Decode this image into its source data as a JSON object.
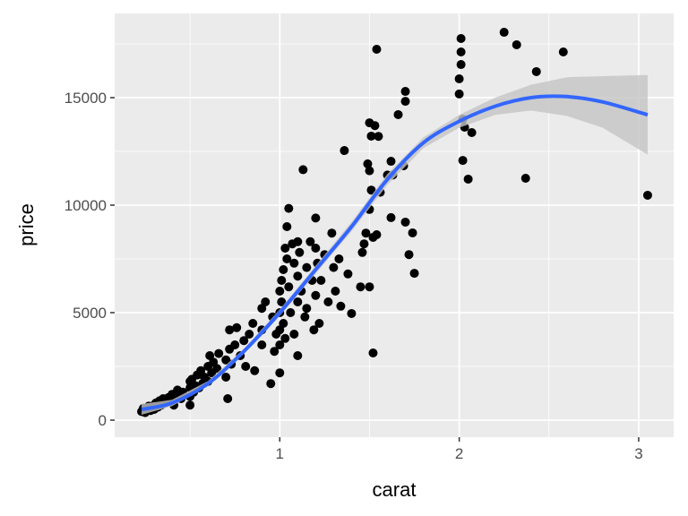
{
  "chart_data": {
    "type": "scatter",
    "x_label": "carat",
    "y_label": "price",
    "xlim": [
      0.08,
      3.195
    ],
    "ylim": [
      -792,
      18917
    ],
    "xticks": [
      1,
      2,
      3
    ],
    "yticks": [
      0,
      5000,
      10000,
      15000
    ],
    "xminor": [
      0.5,
      1.5,
      2.5
    ],
    "yminor": [
      2500,
      7500,
      12500,
      17500
    ],
    "grid": true,
    "panel_color": "#ebebeb",
    "points": {
      "color": "#000000",
      "x": [
        0.23,
        0.24,
        0.25,
        0.26,
        0.27,
        0.28,
        0.3,
        0.3,
        0.31,
        0.32,
        0.33,
        0.34,
        0.35,
        0.36,
        0.38,
        0.4,
        0.4,
        0.41,
        0.42,
        0.43,
        0.45,
        0.46,
        0.5,
        0.5,
        0.5,
        0.5,
        0.51,
        0.52,
        0.53,
        0.54,
        0.55,
        0.56,
        0.57,
        0.58,
        0.6,
        0.6,
        0.61,
        0.62,
        0.63,
        0.65,
        0.66,
        0.7,
        0.7,
        0.71,
        0.72,
        0.72,
        0.73,
        0.75,
        0.76,
        0.78,
        0.8,
        0.81,
        0.83,
        0.85,
        0.86,
        0.9,
        0.9,
        0.9,
        0.92,
        0.95,
        0.96,
        0.97,
        0.98,
        1.0,
        1.0,
        1.0,
        1.0,
        1.0,
        1.01,
        1.01,
        1.02,
        1.02,
        1.03,
        1.03,
        1.04,
        1.04,
        1.05,
        1.05,
        1.06,
        1.07,
        1.08,
        1.08,
        1.1,
        1.1,
        1.1,
        1.1,
        1.11,
        1.12,
        1.13,
        1.14,
        1.15,
        1.15,
        1.17,
        1.18,
        1.19,
        1.2,
        1.2,
        1.2,
        1.21,
        1.22,
        1.23,
        1.25,
        1.27,
        1.29,
        1.3,
        1.31,
        1.33,
        1.34,
        1.36,
        1.38,
        1.4,
        1.45,
        1.46,
        1.47,
        1.48,
        1.49,
        1.5,
        1.5,
        1.5,
        1.5,
        1.51,
        1.51,
        1.52,
        1.52,
        1.53,
        1.54,
        1.54,
        1.55,
        1.56,
        1.6,
        1.62,
        1.62,
        1.63,
        1.66,
        1.69,
        1.7,
        1.7,
        1.7,
        1.72,
        1.74,
        1.75,
        2.0,
        2.0,
        2.01,
        2.01,
        2.01,
        2.02,
        2.02,
        2.03,
        2.05,
        2.07,
        2.25,
        2.32,
        2.37,
        2.43,
        2.58,
        3.05
      ],
      "y": [
        400,
        550,
        350,
        500,
        650,
        450,
        700,
        500,
        800,
        600,
        900,
        700,
        1000,
        800,
        1050,
        900,
        1200,
        700,
        1100,
        1400,
        1000,
        1300,
        1500,
        1100,
        1800,
        700,
        1900,
        1300,
        1600,
        2100,
        1500,
        2300,
        1700,
        2000,
        2500,
        1800,
        3000,
        2200,
        2700,
        2400,
        3100,
        2800,
        2000,
        1000,
        3300,
        4200,
        2600,
        3500,
        4300,
        3000,
        3700,
        2500,
        4000,
        4500,
        2300,
        4200,
        3500,
        5200,
        5500,
        1700,
        4800,
        3200,
        4000,
        6000,
        5000,
        4200,
        3500,
        2200,
        6500,
        5500,
        7000,
        4500,
        3800,
        8000,
        7500,
        9000,
        9850,
        6200,
        5000,
        8200,
        7300,
        4000,
        6700,
        8300,
        5500,
        3000,
        7800,
        6000,
        11650,
        4800,
        7100,
        5200,
        8300,
        6500,
        4200,
        9400,
        8000,
        5800,
        7300,
        4500,
        6500,
        7700,
        5500,
        8700,
        7100,
        6000,
        7500,
        5300,
        12540,
        6800,
        4960,
        6200,
        7800,
        8200,
        8700,
        11920,
        13830,
        11600,
        9800,
        6200,
        13210,
        10700,
        3125,
        8500,
        13700,
        17250,
        8625,
        13200,
        10600,
        11400,
        12040,
        9420,
        11400,
        14210,
        11830,
        15290,
        14830,
        9210,
        7700,
        8710,
        6830,
        15170,
        15875,
        16540,
        17750,
        17125,
        14000,
        12080,
        13625,
        11210,
        13375,
        18040,
        17460,
        11250,
        16210,
        17125,
        10460
      ]
    },
    "smooth": {
      "color": "#3366ff",
      "band_color": "#c4c4c4",
      "x": [
        0.23,
        0.4,
        0.6,
        0.8,
        1.0,
        1.2,
        1.4,
        1.6,
        1.8,
        2.0,
        2.2,
        2.4,
        2.6,
        2.8,
        3.05
      ],
      "values": [
        500,
        800,
        1700,
        3200,
        5000,
        7000,
        9000,
        11200,
        12900,
        13900,
        14600,
        15000,
        15050,
        14800,
        14200
      ],
      "lower": [
        250,
        650,
        1580,
        3080,
        4850,
        6820,
        8780,
        10950,
        12650,
        13600,
        14200,
        14400,
        14150,
        13600,
        12350
      ],
      "upper": [
        750,
        950,
        1820,
        3320,
        5150,
        7180,
        9220,
        11450,
        13150,
        14200,
        15000,
        15600,
        15950,
        16000,
        16050
      ]
    }
  }
}
